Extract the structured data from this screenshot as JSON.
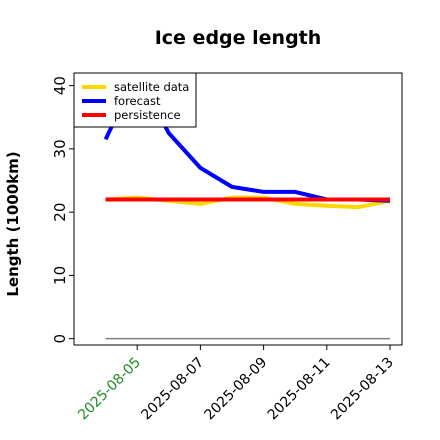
{
  "chart_data": {
    "type": "line",
    "title": "Ice edge length",
    "xlabel": "",
    "ylabel": "Length (1000km)",
    "x": [
      "2025-08-04",
      "2025-08-05",
      "2025-08-06",
      "2025-08-07",
      "2025-08-08",
      "2025-08-09",
      "2025-08-10",
      "2025-08-11",
      "2025-08-12",
      "2025-08-13"
    ],
    "xticks": [
      {
        "date": "2025-08-05",
        "color": "#228b22"
      },
      {
        "date": "2025-08-07",
        "color": "#000000"
      },
      {
        "date": "2025-08-09",
        "color": "#000000"
      },
      {
        "date": "2025-08-11",
        "color": "#000000"
      },
      {
        "date": "2025-08-13",
        "color": "#000000"
      }
    ],
    "xlim": [
      "2025-08-03",
      "2025-08-13"
    ],
    "ylim": [
      -1,
      42
    ],
    "yticks": [
      0,
      10,
      20,
      30,
      40
    ],
    "grid": false,
    "legend_position": "top-left",
    "series": [
      {
        "name": "satellite data",
        "color": "#ffd700",
        "values": [
          22.0,
          22.3,
          21.8,
          21.3,
          22.3,
          22.3,
          21.3,
          21.0,
          20.8,
          21.8
        ]
      },
      {
        "name": "forecast",
        "color": "#0000ff",
        "values": [
          31.5,
          42.0,
          32.5,
          27.0,
          24.0,
          23.2,
          23.2,
          22.0,
          22.0,
          21.8
        ]
      },
      {
        "name": "persistence",
        "color": "#ff0000",
        "values": [
          22.0,
          22.0,
          22.0,
          22.0,
          22.0,
          22.0,
          22.0,
          22.0,
          22.0,
          22.0
        ]
      }
    ],
    "reference_line": {
      "y": 0,
      "color": "#808080"
    }
  }
}
